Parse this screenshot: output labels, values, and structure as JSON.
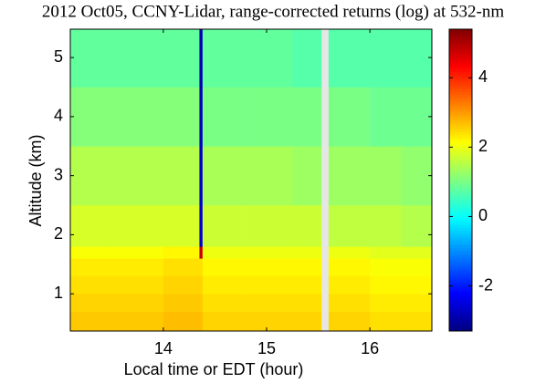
{
  "chart_data": {
    "type": "heatmap",
    "title": "2012 Oct05, CCNY-Lidar, range-corrected returns (log) at 532-nm",
    "xlabel": "Local time or EDT (hour)",
    "ylabel": "Altitude (km)",
    "x_edges": [
      13.1,
      13.5,
      14.0,
      14.35,
      14.38,
      14.75,
      15.25,
      15.53,
      15.6,
      16.0,
      16.3,
      16.6
    ],
    "y_edges": [
      0.37,
      0.7,
      1.0,
      1.3,
      1.6,
      1.8,
      2.5,
      3.5,
      4.5,
      5.48
    ],
    "z": [
      [
        2.6,
        2.6,
        2.7,
        2.7,
        2.5,
        2.5,
        2.5,
        null,
        2.5,
        2.4,
        2.4
      ],
      [
        2.5,
        2.5,
        2.6,
        2.6,
        2.4,
        2.4,
        2.4,
        null,
        2.4,
        2.3,
        2.3
      ],
      [
        2.4,
        2.4,
        2.5,
        2.5,
        2.3,
        2.3,
        2.3,
        null,
        2.3,
        2.2,
        2.2
      ],
      [
        2.3,
        2.3,
        2.4,
        2.4,
        2.2,
        2.2,
        2.2,
        null,
        2.2,
        2.1,
        2.1
      ],
      [
        2.1,
        2.1,
        2.2,
        4.8,
        2.0,
        2.0,
        2.0,
        null,
        2.0,
        1.9,
        1.9
      ],
      [
        1.8,
        1.8,
        1.8,
        -2.6,
        1.7,
        1.7,
        1.7,
        null,
        1.6,
        1.6,
        1.5
      ],
      [
        1.5,
        1.5,
        1.5,
        -2.7,
        1.4,
        1.4,
        1.3,
        null,
        1.3,
        1.3,
        1.2
      ],
      [
        1.1,
        1.1,
        1.1,
        -2.8,
        1.0,
        1.0,
        1.0,
        null,
        1.0,
        0.9,
        0.9
      ],
      [
        0.8,
        0.8,
        0.8,
        -2.9,
        0.8,
        0.8,
        0.7,
        null,
        0.7,
        0.7,
        0.7
      ]
    ],
    "xlim": [
      13.1,
      16.6
    ],
    "xticks": [
      14,
      15,
      16
    ],
    "ylim": [
      0.37,
      5.48
    ],
    "yticks": [
      1,
      2,
      3,
      4,
      5
    ],
    "colormap": "jet",
    "clim": [
      -3.3,
      5.4
    ],
    "cticks": [
      -2,
      0,
      2,
      4
    ]
  }
}
